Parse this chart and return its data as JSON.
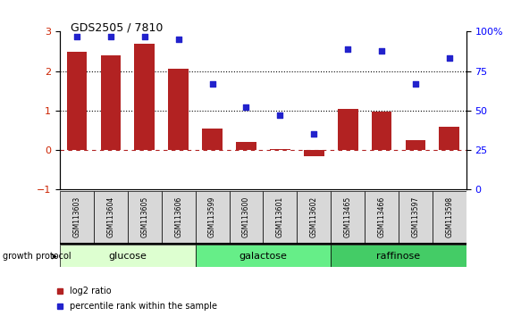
{
  "title": "GDS2505 / 7810",
  "samples": [
    "GSM113603",
    "GSM113604",
    "GSM113605",
    "GSM113606",
    "GSM113599",
    "GSM113600",
    "GSM113601",
    "GSM113602",
    "GSM113465",
    "GSM113466",
    "GSM113597",
    "GSM113598"
  ],
  "log2_ratio": [
    2.5,
    2.4,
    2.7,
    2.07,
    0.55,
    0.2,
    0.03,
    -0.15,
    1.05,
    0.98,
    0.25,
    0.58
  ],
  "percentile_rank": [
    97,
    97,
    97,
    95,
    67,
    52,
    47,
    35,
    89,
    88,
    67,
    83
  ],
  "bar_color": "#b22222",
  "dot_color": "#2222cc",
  "groups": [
    {
      "label": "glucose",
      "start": 0,
      "end": 4,
      "color": "#ddffd0"
    },
    {
      "label": "galactose",
      "start": 4,
      "end": 8,
      "color": "#66ee88"
    },
    {
      "label": "raffinose",
      "start": 8,
      "end": 12,
      "color": "#44cc66"
    }
  ],
  "ylim_left": [
    -1,
    3
  ],
  "ylim_right": [
    0,
    100
  ],
  "yticks_left": [
    -1,
    0,
    1,
    2,
    3
  ],
  "yticks_right": [
    0,
    25,
    50,
    75,
    100
  ],
  "ytick_labels_right": [
    "0",
    "25",
    "50",
    "75",
    "100%"
  ],
  "legend_bar_label": "log2 ratio",
  "legend_dot_label": "percentile rank within the sample",
  "group_label": "growth protocol"
}
